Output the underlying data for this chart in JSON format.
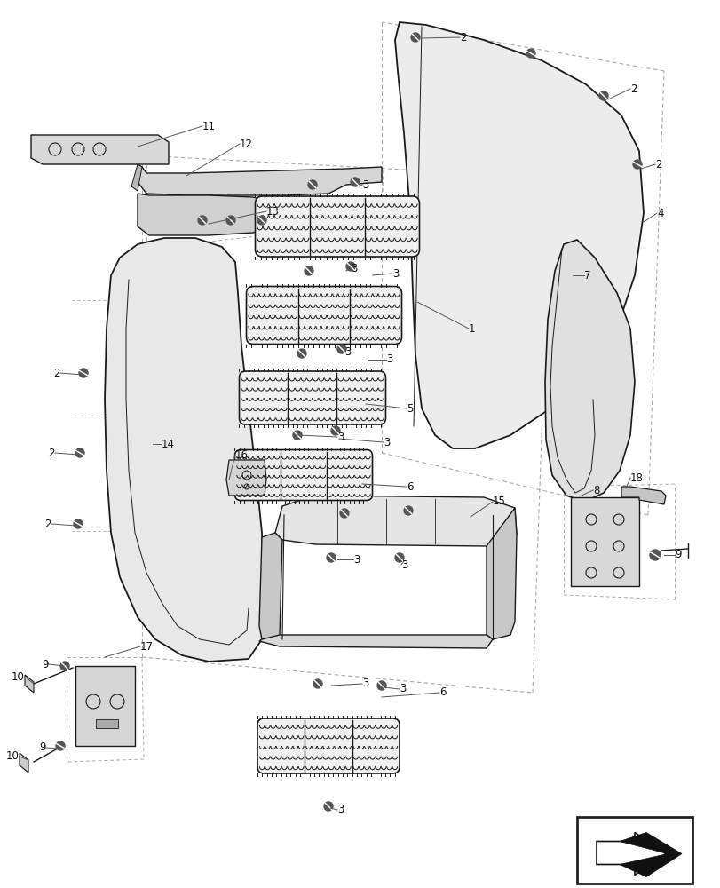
{
  "bg_color": "#ffffff",
  "lc": "#1a1a1a",
  "fig_width": 8.12,
  "fig_height": 10.0,
  "dpi": 100
}
